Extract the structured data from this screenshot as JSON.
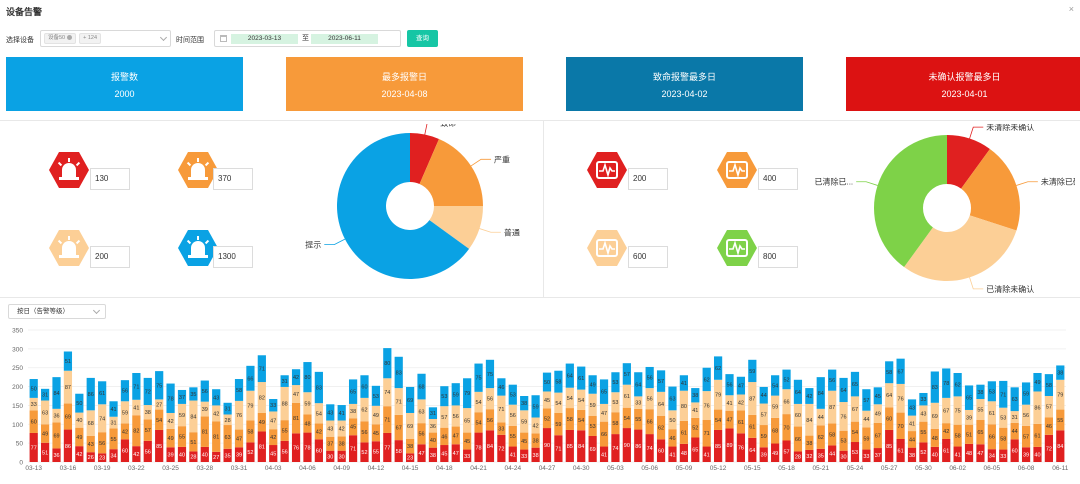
{
  "page": {
    "title": "设备告警",
    "close": "×"
  },
  "filter": {
    "device_label": "选择设备",
    "device_tag": "设备50",
    "device_more": "+ 124",
    "time_label": "时间范围",
    "date_start": "2023-03-13",
    "date_sep": "至",
    "date_end": "2023-06-11",
    "query_label": "查询"
  },
  "cards": [
    {
      "label": "报警数",
      "value": "2000",
      "color": "#0aa2e4"
    },
    {
      "label": "最多报警日",
      "value": "2023-04-08",
      "color": "#f79a3a"
    },
    {
      "label": "致命报警最多日",
      "value": "2023-04-02",
      "color": "#0a78a8"
    },
    {
      "label": "未确认报警最多日",
      "value": "2023-04-01",
      "color": "#dc1212"
    }
  ],
  "severity_counts": [
    {
      "icon": "alarm-icon",
      "level": "致命",
      "value": "130",
      "color": "#e02020"
    },
    {
      "icon": "alarm-icon",
      "level": "严重",
      "value": "370",
      "color": "#f79a3a"
    },
    {
      "icon": "alarm-icon",
      "level": "普通",
      "value": "200",
      "color": "#fccf96"
    },
    {
      "icon": "alarm-icon",
      "level": "提示",
      "value": "1300",
      "color": "#0aa2e4"
    }
  ],
  "status_counts": [
    {
      "icon": "waveform-icon",
      "value": "200",
      "color": "#e02020"
    },
    {
      "icon": "waveform-icon",
      "value": "400",
      "color": "#f79a3a"
    },
    {
      "icon": "waveform-icon",
      "value": "600",
      "color": "#fccf96"
    },
    {
      "icon": "waveform-icon",
      "value": "800",
      "color": "#7ed248"
    }
  ],
  "mode_select": {
    "value": "按日（告警等级）"
  },
  "chart_data": [
    {
      "type": "pie",
      "categories": [
        "致命",
        "严重",
        "普通",
        "提示"
      ],
      "values": [
        130,
        370,
        200,
        1300
      ],
      "colors": [
        "#e02020",
        "#f79a3a",
        "#fccf96",
        "#0aa2e4"
      ],
      "donut": true
    },
    {
      "type": "pie",
      "categories": [
        "未清除未确认",
        "未清除已确认",
        "已清除未确认",
        "已清除已..."
      ],
      "values": [
        200,
        400,
        600,
        800
      ],
      "colors": [
        "#e02020",
        "#f79a3a",
        "#fccf96",
        "#7ed248"
      ],
      "donut": true
    },
    {
      "type": "bar",
      "stacked": true,
      "start_date": "2023-03-13",
      "days": 91,
      "x_tick_labels": [
        "03-13",
        "03-16",
        "03-19",
        "03-22",
        "03-25",
        "03-28",
        "03-31",
        "04-03",
        "04-06",
        "04-09",
        "04-12",
        "04-15",
        "04-18",
        "04-21",
        "04-24",
        "04-27",
        "04-30",
        "05-03",
        "05-06",
        "05-09",
        "05-12",
        "05-15",
        "05-18",
        "05-21",
        "05-24",
        "05-27",
        "05-30",
        "06-02",
        "06-05",
        "06-08",
        "06-11"
      ],
      "ylim": [
        0,
        350
      ],
      "y_ticks": [
        0,
        50,
        100,
        150,
        200,
        250,
        300,
        350
      ],
      "grid": true,
      "series": [
        {
          "color": "#e02020",
          "values": [
            77,
            51,
            36,
            86,
            42,
            26,
            23,
            34,
            60,
            42,
            56,
            85,
            39,
            40,
            28,
            40,
            27,
            35,
            39,
            52,
            81,
            45,
            56,
            76,
            78,
            60,
            30,
            30,
            71,
            52,
            55,
            77,
            58,
            23,
            47,
            38,
            45,
            47,
            33,
            78,
            84,
            72,
            41,
            33,
            38,
            90,
            71,
            85,
            84,
            69,
            41,
            74,
            90,
            86,
            74,
            60,
            41,
            48,
            65,
            41,
            85,
            89,
            76,
            64,
            39,
            49,
            57,
            28,
            32,
            35,
            44,
            30,
            53,
            33,
            37,
            85,
            61,
            38,
            52,
            40,
            61,
            41,
            48,
            47,
            34,
            33,
            60,
            39,
            40,
            72,
            84
          ]
        },
        {
          "color": "#f79a3a",
          "values": [
            60,
            49,
            69,
            69,
            49,
            43,
            56,
            55,
            42,
            82,
            57,
            54,
            49,
            55,
            51,
            81,
            81,
            63,
            47,
            58,
            49,
            42,
            55,
            81,
            48,
            42,
            37,
            38,
            45,
            56,
            45,
            71,
            67,
            38,
            56,
            40,
            46,
            47,
            45,
            54,
            56,
            33,
            55,
            45,
            38,
            52,
            59,
            58,
            54,
            53,
            66,
            58,
            54,
            55,
            66,
            62,
            46,
            61,
            52,
            71,
            54,
            47,
            61,
            61,
            59,
            68,
            70,
            66,
            38,
            62,
            58,
            53,
            54,
            59,
            67,
            60,
            70,
            44,
            55,
            48,
            42,
            58,
            51,
            65,
            66,
            58,
            44,
            57,
            61,
            46,
            55
          ]
        },
        {
          "color": "#fccf96",
          "values": [
            33,
            63,
            36,
            87,
            40,
            68,
            74,
            31,
            59,
            41,
            38,
            27,
            42,
            59,
            84,
            39,
            42,
            28,
            76,
            79,
            82,
            47,
            88,
            47,
            59,
            54,
            43,
            42,
            38,
            62,
            49,
            74,
            71,
            69,
            63,
            36,
            57,
            56,
            65,
            54,
            56,
            71,
            56,
            59,
            42,
            45,
            54,
            54,
            54,
            59,
            47,
            53,
            61,
            33,
            56,
            64,
            50,
            80,
            41,
            76,
            79,
            41,
            42,
            87,
            57,
            59,
            66,
            60,
            84,
            44,
            87,
            76,
            67,
            44,
            49,
            64,
            76,
            41,
            43,
            69,
            67,
            75,
            39,
            55,
            61,
            53,
            31,
            56,
            86,
            57,
            79
          ]
        },
        {
          "color": "#0aa2e4",
          "values": [
            50,
            31,
            84,
            51,
            50,
            86,
            61,
            41,
            56,
            71,
            72,
            75,
            78,
            37,
            35,
            56,
            43,
            31,
            58,
            66,
            71,
            33,
            31,
            42,
            80,
            83,
            43,
            41,
            65,
            60,
            53,
            80,
            83,
            69,
            68,
            31,
            53,
            59,
            79,
            75,
            75,
            46,
            53,
            38,
            59,
            50,
            58,
            64,
            61,
            49,
            65,
            53,
            57,
            64,
            56,
            57,
            63,
            41,
            38,
            62,
            62,
            56,
            47,
            59,
            44,
            54,
            52,
            64,
            42,
            84,
            56,
            64,
            65,
            57,
            45,
            58,
            67,
            43,
            33,
            83,
            78,
            62,
            65,
            38,
            53,
            71,
            63,
            59,
            49,
            58,
            38
          ]
        }
      ]
    }
  ]
}
